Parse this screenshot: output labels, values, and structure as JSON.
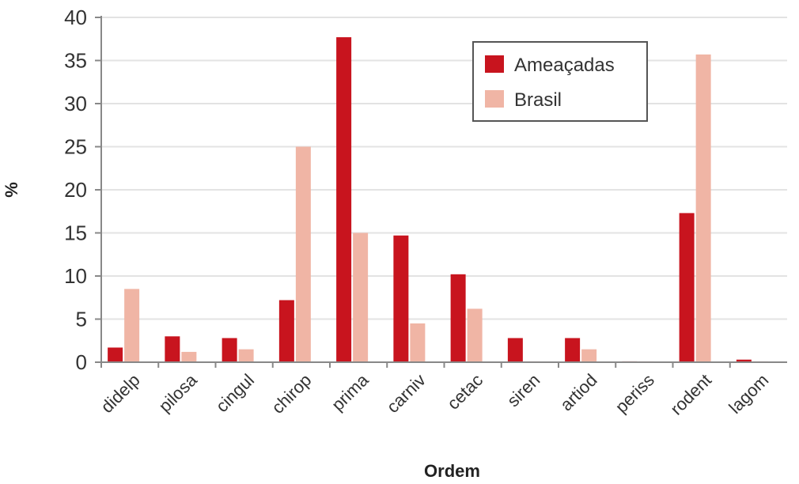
{
  "chart_data": {
    "type": "bar",
    "title": "",
    "xlabel": "Ordem",
    "ylabel": "%",
    "ylim": [
      0,
      40
    ],
    "yticks": [
      0,
      5,
      10,
      15,
      20,
      25,
      30,
      35,
      40
    ],
    "grid": true,
    "legend_position": "top-right",
    "categories": [
      "didelp",
      "pilosa",
      "cingul",
      "chirop",
      "prima",
      "carniv",
      "cetac",
      "siren",
      "artiod",
      "periss",
      "rodent",
      "lagom"
    ],
    "series": [
      {
        "name": "Ameaçadas",
        "color": "#c8141e",
        "values": [
          1.7,
          3.0,
          2.8,
          7.2,
          37.7,
          14.7,
          10.2,
          2.8,
          2.8,
          0.1,
          17.3,
          0.3
        ]
      },
      {
        "name": "Brasil",
        "color": "#f0b5a5",
        "values": [
          8.5,
          1.2,
          1.5,
          25.0,
          15.0,
          4.5,
          6.2,
          0.1,
          1.5,
          0.1,
          35.7,
          0.1
        ]
      }
    ]
  }
}
